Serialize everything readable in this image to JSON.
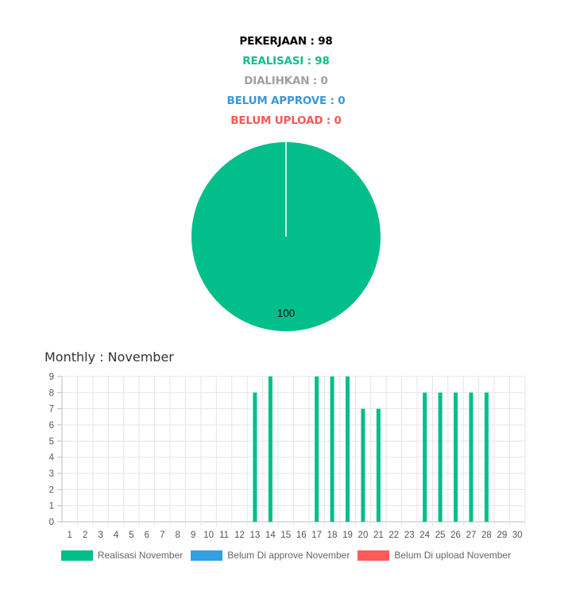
{
  "summary": {
    "pekerjaan": "PEKERJAAN : 98",
    "realisasi": "REALISASI : 98",
    "dialihkan": "DIALIHKAN : 0",
    "belum_approve": "BELUM APPROVE : 0",
    "belum_upload": "BELUM UPLOAD : 0"
  },
  "colors": {
    "pekerjaan": "#000000",
    "realisasi": "#13bf8c",
    "dialihkan": "#a0a0a0",
    "belum_approve": "#3a98d8",
    "belum_upload": "#f25a5a",
    "pie": "#02be8a",
    "bar_realisasi": "#02be8a",
    "bar_approve": "#33a0e0",
    "bar_upload": "#ff5b5b",
    "grid": "#e6e6e6"
  },
  "monthly": {
    "title": "Monthly : November"
  },
  "chart_data": [
    {
      "type": "pie",
      "slices": [
        {
          "label": "Realisasi",
          "value": 100
        }
      ],
      "data_label": "100"
    },
    {
      "type": "bar",
      "categories": [
        "1",
        "2",
        "3",
        "4",
        "5",
        "6",
        "7",
        "8",
        "9",
        "10",
        "11",
        "12",
        "13",
        "14",
        "15",
        "16",
        "17",
        "18",
        "19",
        "20",
        "21",
        "22",
        "23",
        "24",
        "25",
        "26",
        "27",
        "28",
        "29",
        "30"
      ],
      "series": [
        {
          "name": "Realisasi November",
          "values": [
            0,
            0,
            0,
            0,
            0,
            0,
            0,
            0,
            0,
            0,
            0,
            0,
            8,
            9,
            0,
            0,
            9,
            9,
            9,
            7,
            7,
            0,
            0,
            8,
            8,
            8,
            8,
            8,
            0,
            0
          ]
        },
        {
          "name": "Belum Di approve November",
          "values": [
            0,
            0,
            0,
            0,
            0,
            0,
            0,
            0,
            0,
            0,
            0,
            0,
            0,
            0,
            0,
            0,
            0,
            0,
            0,
            0,
            0,
            0,
            0,
            0,
            0,
            0,
            0,
            0,
            0,
            0
          ]
        },
        {
          "name": "Belum Di upload November",
          "values": [
            0,
            0,
            0,
            0,
            0,
            0,
            0,
            0,
            0,
            0,
            0,
            0,
            0,
            0,
            0,
            0,
            0,
            0,
            0,
            0,
            0,
            0,
            0,
            0,
            0,
            0,
            0,
            0,
            0,
            0
          ]
        }
      ],
      "yticks": [
        "0",
        "1",
        "2",
        "3",
        "4",
        "5",
        "6",
        "7",
        "8",
        "9"
      ],
      "ylim": [
        0,
        9
      ],
      "grid": true,
      "legend": "bottom"
    }
  ]
}
